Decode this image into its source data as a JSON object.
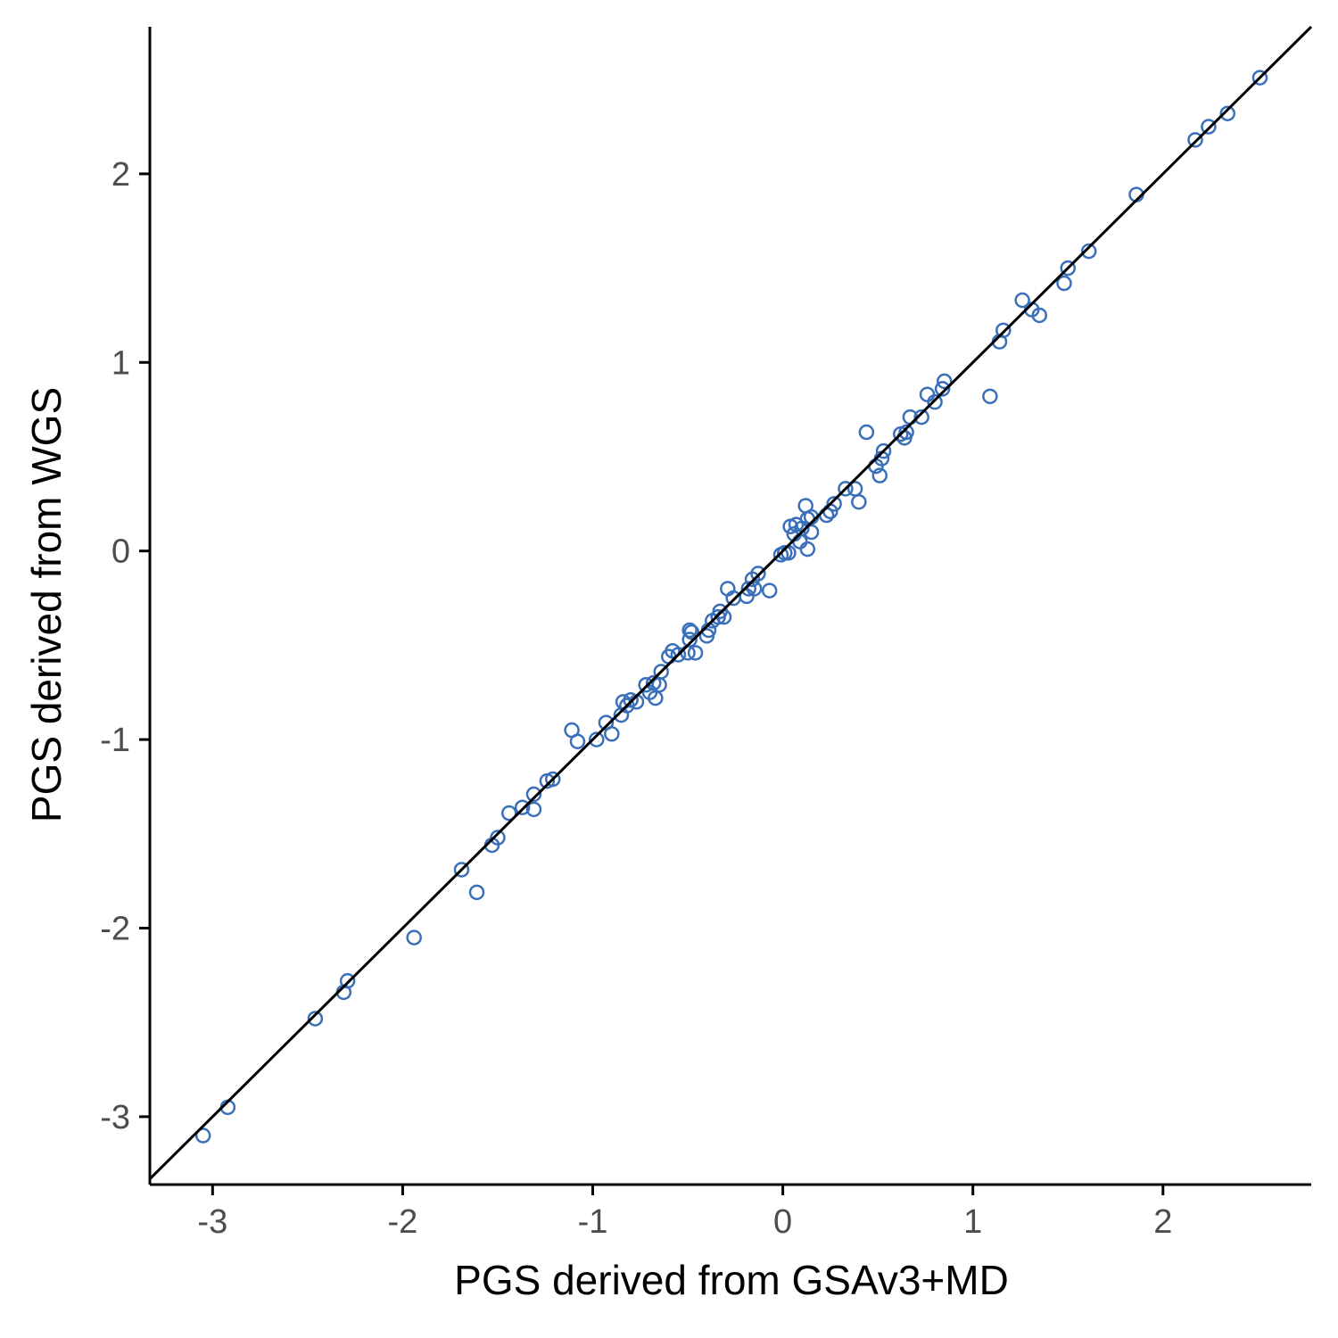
{
  "chart_data": {
    "type": "scatter",
    "title": "",
    "xlabel": "PGS derived from GSAv3+MD",
    "ylabel": "PGS derived from WGS",
    "xlim": [
      -3.33,
      2.78
    ],
    "ylim": [
      -3.36,
      2.78
    ],
    "xticks": [
      -3,
      -2,
      -1,
      0,
      1,
      2
    ],
    "yticks": [
      -3,
      -2,
      -1,
      0,
      1,
      2
    ],
    "xtick_labels": [
      "-3",
      "-2",
      "-1",
      "0",
      "1",
      "2"
    ],
    "ytick_labels": [
      "-3",
      "-2",
      "-1",
      "0",
      "1",
      "2"
    ],
    "grid": false,
    "reference_line": {
      "type": "identity",
      "slope": 1,
      "intercept": 0,
      "color": "#000000"
    },
    "marker": {
      "shape": "open-circle",
      "color": "#3a6fba"
    },
    "points": [
      {
        "x": -3.05,
        "y": -3.1
      },
      {
        "x": -2.92,
        "y": -2.95
      },
      {
        "x": -2.46,
        "y": -2.48
      },
      {
        "x": -2.31,
        "y": -2.34
      },
      {
        "x": -2.29,
        "y": -2.28
      },
      {
        "x": -1.94,
        "y": -2.05
      },
      {
        "x": -1.69,
        "y": -1.69
      },
      {
        "x": -1.61,
        "y": -1.81
      },
      {
        "x": -1.53,
        "y": -1.56
      },
      {
        "x": -1.5,
        "y": -1.52
      },
      {
        "x": -1.44,
        "y": -1.39
      },
      {
        "x": -1.37,
        "y": -1.36
      },
      {
        "x": -1.31,
        "y": -1.37
      },
      {
        "x": -1.31,
        "y": -1.29
      },
      {
        "x": -1.24,
        "y": -1.22
      },
      {
        "x": -1.21,
        "y": -1.21
      },
      {
        "x": -1.11,
        "y": -0.95
      },
      {
        "x": -1.08,
        "y": -1.01
      },
      {
        "x": -0.98,
        "y": -1.0
      },
      {
        "x": -0.93,
        "y": -0.91
      },
      {
        "x": -0.9,
        "y": -0.97
      },
      {
        "x": -0.85,
        "y": -0.87
      },
      {
        "x": -0.84,
        "y": -0.8
      },
      {
        "x": -0.82,
        "y": -0.82
      },
      {
        "x": -0.8,
        "y": -0.79
      },
      {
        "x": -0.77,
        "y": -0.8
      },
      {
        "x": -0.72,
        "y": -0.71
      },
      {
        "x": -0.7,
        "y": -0.75
      },
      {
        "x": -0.68,
        "y": -0.7
      },
      {
        "x": -0.67,
        "y": -0.78
      },
      {
        "x": -0.65,
        "y": -0.71
      },
      {
        "x": -0.64,
        "y": -0.64
      },
      {
        "x": -0.6,
        "y": -0.56
      },
      {
        "x": -0.58,
        "y": -0.53
      },
      {
        "x": -0.55,
        "y": -0.55
      },
      {
        "x": -0.5,
        "y": -0.54
      },
      {
        "x": -0.49,
        "y": -0.47
      },
      {
        "x": -0.49,
        "y": -0.42
      },
      {
        "x": -0.48,
        "y": -0.43
      },
      {
        "x": -0.46,
        "y": -0.54
      },
      {
        "x": -0.4,
        "y": -0.45
      },
      {
        "x": -0.39,
        "y": -0.42
      },
      {
        "x": -0.37,
        "y": -0.37
      },
      {
        "x": -0.34,
        "y": -0.35
      },
      {
        "x": -0.33,
        "y": -0.32
      },
      {
        "x": -0.31,
        "y": -0.35
      },
      {
        "x": -0.29,
        "y": -0.2
      },
      {
        "x": -0.26,
        "y": -0.25
      },
      {
        "x": -0.19,
        "y": -0.24
      },
      {
        "x": -0.18,
        "y": -0.2
      },
      {
        "x": -0.16,
        "y": -0.15
      },
      {
        "x": -0.15,
        "y": -0.2
      },
      {
        "x": -0.13,
        "y": -0.12
      },
      {
        "x": -0.07,
        "y": -0.21
      },
      {
        "x": -0.01,
        "y": -0.02
      },
      {
        "x": 0.01,
        "y": -0.01
      },
      {
        "x": 0.03,
        "y": -0.01
      },
      {
        "x": 0.04,
        "y": 0.13
      },
      {
        "x": 0.06,
        "y": 0.09
      },
      {
        "x": 0.07,
        "y": 0.14
      },
      {
        "x": 0.09,
        "y": 0.05
      },
      {
        "x": 0.1,
        "y": 0.12
      },
      {
        "x": 0.12,
        "y": 0.24
      },
      {
        "x": 0.13,
        "y": 0.01
      },
      {
        "x": 0.13,
        "y": 0.17
      },
      {
        "x": 0.15,
        "y": 0.1
      },
      {
        "x": 0.15,
        "y": 0.18
      },
      {
        "x": 0.23,
        "y": 0.19
      },
      {
        "x": 0.25,
        "y": 0.21
      },
      {
        "x": 0.27,
        "y": 0.25
      },
      {
        "x": 0.33,
        "y": 0.33
      },
      {
        "x": 0.38,
        "y": 0.33
      },
      {
        "x": 0.4,
        "y": 0.26
      },
      {
        "x": 0.44,
        "y": 0.63
      },
      {
        "x": 0.49,
        "y": 0.45
      },
      {
        "x": 0.51,
        "y": 0.4
      },
      {
        "x": 0.52,
        "y": 0.49
      },
      {
        "x": 0.53,
        "y": 0.53
      },
      {
        "x": 0.62,
        "y": 0.62
      },
      {
        "x": 0.64,
        "y": 0.6
      },
      {
        "x": 0.65,
        "y": 0.63
      },
      {
        "x": 0.67,
        "y": 0.71
      },
      {
        "x": 0.73,
        "y": 0.71
      },
      {
        "x": 0.76,
        "y": 0.83
      },
      {
        "x": 0.8,
        "y": 0.79
      },
      {
        "x": 0.84,
        "y": 0.86
      },
      {
        "x": 0.85,
        "y": 0.9
      },
      {
        "x": 1.09,
        "y": 0.82
      },
      {
        "x": 1.14,
        "y": 1.11
      },
      {
        "x": 1.16,
        "y": 1.17
      },
      {
        "x": 1.26,
        "y": 1.33
      },
      {
        "x": 1.31,
        "y": 1.28
      },
      {
        "x": 1.35,
        "y": 1.25
      },
      {
        "x": 1.48,
        "y": 1.42
      },
      {
        "x": 1.5,
        "y": 1.5
      },
      {
        "x": 1.61,
        "y": 1.59
      },
      {
        "x": 1.86,
        "y": 1.89
      },
      {
        "x": 2.17,
        "y": 2.18
      },
      {
        "x": 2.24,
        "y": 2.25
      },
      {
        "x": 2.34,
        "y": 2.32
      },
      {
        "x": 2.51,
        "y": 2.51
      }
    ]
  }
}
